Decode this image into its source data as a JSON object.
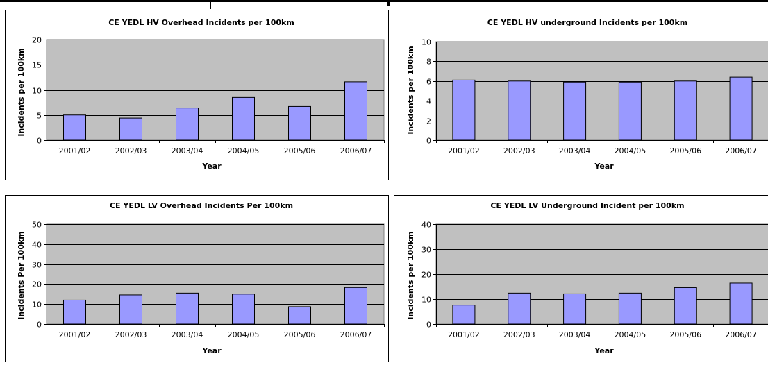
{
  "chart_data": [
    {
      "type": "bar",
      "title": "CE YEDL HV Overhead Incidents per 100km",
      "xlabel": "Year",
      "ylabel": "Incidents per 100km",
      "categories": [
        "2001/02",
        "2002/03",
        "2003/04",
        "2004/05",
        "2005/06",
        "2006/07"
      ],
      "values": [
        5.0,
        4.4,
        6.4,
        8.5,
        6.7,
        11.6
      ],
      "ylim": [
        0,
        20
      ],
      "yticks": [
        0,
        5,
        10,
        15,
        20
      ],
      "grid": true,
      "legend": "none",
      "colors": {
        "bar": "#9999ff",
        "plot_bg": "#c0c0c0"
      }
    },
    {
      "type": "bar",
      "title": "CE YEDL HV underground Incidents per 100km",
      "xlabel": "Year",
      "ylabel": "Incidents per 100km",
      "categories": [
        "2001/02",
        "2002/03",
        "2003/04",
        "2004/05",
        "2005/06",
        "2006/07"
      ],
      "values": [
        6.1,
        6.0,
        5.9,
        5.9,
        6.0,
        6.4
      ],
      "ylim": [
        0,
        10
      ],
      "yticks": [
        0,
        2,
        4,
        6,
        8,
        10
      ],
      "grid": true,
      "legend": "none",
      "colors": {
        "bar": "#9999ff",
        "plot_bg": "#c0c0c0"
      }
    },
    {
      "type": "bar",
      "title": "CE YEDL LV Overhead Incidents Per 100km",
      "xlabel": "Year",
      "ylabel": "Incidents Per 100km",
      "categories": [
        "2001/02",
        "2002/03",
        "2003/04",
        "2004/05",
        "2005/06",
        "2006/07"
      ],
      "values": [
        12.0,
        14.6,
        15.5,
        15.0,
        8.7,
        18.3
      ],
      "ylim": [
        0,
        50
      ],
      "yticks": [
        0,
        10,
        20,
        30,
        40,
        50
      ],
      "grid": true,
      "legend": "none",
      "colors": {
        "bar": "#9999ff",
        "plot_bg": "#c0c0c0"
      }
    },
    {
      "type": "bar",
      "title": "CE YEDL LV Underground Incident per 100km",
      "xlabel": "Year",
      "ylabel": "Incidents per 100km",
      "categories": [
        "2001/02",
        "2002/03",
        "2003/04",
        "2004/05",
        "2005/06",
        "2006/07"
      ],
      "values": [
        7.6,
        12.4,
        12.1,
        12.4,
        14.6,
        16.4
      ],
      "ylim": [
        0,
        40
      ],
      "yticks": [
        0,
        10,
        20,
        30,
        40
      ],
      "grid": true,
      "legend": "none",
      "colors": {
        "bar": "#9999ff",
        "plot_bg": "#c0c0c0"
      }
    }
  ]
}
